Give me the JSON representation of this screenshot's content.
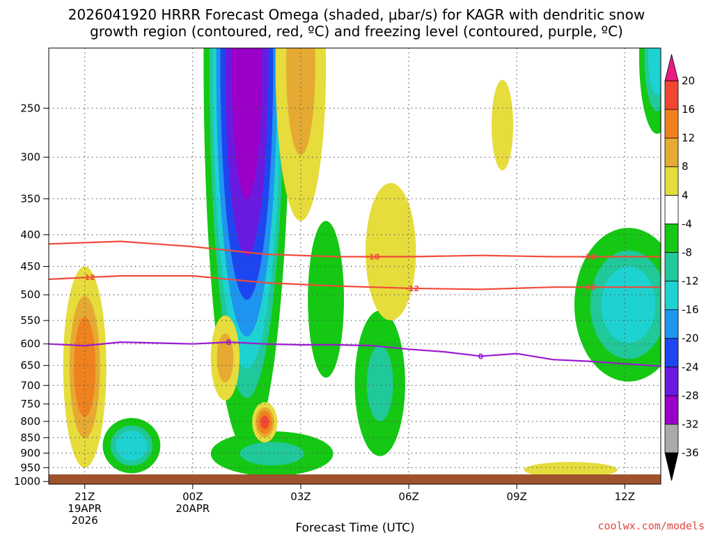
{
  "title_line1": "2026041920 HRRR Forecast Omega (shaded, μbar/s) for KAGR with dendritic snow",
  "title_line2": "growth region (contoured, red, ºC) and freezing level (contoured, purple, ºC)",
  "xlabel": "Forecast Time (UTC)",
  "credit": "coolwx.com/models",
  "colors": {
    "snow_contour": "#f04a3a",
    "freezing_contour": "#9a1ad0",
    "ground": "#a0522d",
    "grid": "#555555"
  },
  "chart_data": {
    "type": "heatmap",
    "title": "2026041920 HRRR Forecast Omega (shaded, μbar/s) for KAGR with dendritic snow growth region (contoured, red, ºC) and freezing level (contoured, purple, ºC)",
    "xlabel": "Forecast Time (UTC)",
    "ylabel": "",
    "x_ticks": [
      {
        "hour": 1,
        "lines": [
          "21Z",
          "19APR",
          "2026"
        ]
      },
      {
        "hour": 4,
        "lines": [
          "00Z",
          "20APR"
        ]
      },
      {
        "hour": 7,
        "lines": [
          "03Z"
        ]
      },
      {
        "hour": 10,
        "lines": [
          "06Z"
        ]
      },
      {
        "hour": 13,
        "lines": [
          "09Z"
        ]
      },
      {
        "hour": 16,
        "lines": [
          "12Z"
        ]
      }
    ],
    "xlim": [
      0.0,
      17.0
    ],
    "y_ticks": [
      250,
      300,
      350,
      400,
      450,
      500,
      550,
      600,
      650,
      700,
      750,
      800,
      850,
      900,
      950,
      1000
    ],
    "ylim_hpa": [
      200,
      1010
    ],
    "colorbar": {
      "levels": [
        -36,
        -32,
        -28,
        -24,
        -20,
        -16,
        -12,
        -8,
        -4,
        4,
        8,
        12,
        16,
        20
      ],
      "colors": [
        "#000000",
        "#aaaaaa",
        "#9a00c8",
        "#6a1ae0",
        "#1e46f0",
        "#1e96f0",
        "#1ed2d2",
        "#20c89a",
        "#14c814",
        "#ffffff",
        "#e6dc3c",
        "#e6aa32",
        "#f0821e",
        "#f04632",
        "#e61e82"
      ]
    },
    "omega_regions": [
      {
        "name": "main-ascent-band",
        "t": 5.5,
        "p": 470,
        "dt": 1.2,
        "dp": 420,
        "value": -30
      },
      {
        "name": "low-level-ascent",
        "t": 6.2,
        "p": 905,
        "dt": 1.7,
        "dp": 75,
        "value": -9
      },
      {
        "name": "mid-ascent-0430z",
        "t": 7.7,
        "p": 530,
        "dt": 0.5,
        "dp": 150,
        "value": -7
      },
      {
        "name": "low-ascent-0530z",
        "t": 9.2,
        "p": 720,
        "dt": 0.7,
        "dp": 190,
        "value": -9
      },
      {
        "name": "east-ascent-block",
        "t": 16.1,
        "p": 540,
        "dt": 1.5,
        "dp": 150,
        "value": -14
      },
      {
        "name": "top-right-ascent",
        "t": 16.9,
        "p": 215,
        "dt": 0.5,
        "dp": 60,
        "value": -14
      },
      {
        "name": "sw-ascent-2230z",
        "t": 2.3,
        "p": 880,
        "dt": 0.8,
        "dp": 90,
        "value": -15
      },
      {
        "name": "sinking-2100z",
        "t": 1.0,
        "p": 700,
        "dt": 0.6,
        "dp": 250,
        "value": 14
      },
      {
        "name": "sinking-0100z",
        "t": 4.9,
        "p": 640,
        "dt": 0.4,
        "dp": 100,
        "value": 10
      },
      {
        "name": "sinking-0200z",
        "t": 6.0,
        "p": 805,
        "dt": 0.35,
        "dp": 60,
        "value": 16
      },
      {
        "name": "sinking-upper-0330z",
        "t": 7.0,
        "p": 250,
        "dt": 0.7,
        "dp": 130,
        "value": 10
      },
      {
        "name": "sinking-0530z",
        "t": 9.5,
        "p": 440,
        "dt": 0.7,
        "dp": 110,
        "value": 6
      },
      {
        "name": "sinking-0730z",
        "t": 12.6,
        "p": 270,
        "dt": 0.3,
        "dp": 45,
        "value": 6
      },
      {
        "name": "sinking-1100z",
        "t": 14.5,
        "p": 958,
        "dt": 1.3,
        "dp": 28,
        "value": 6
      }
    ],
    "series": [
      {
        "name": "-18",
        "kind": "dendritic",
        "label": "-18",
        "t": [
          0.0,
          2.0,
          4.0,
          6.0,
          8.0,
          10.0,
          12.0,
          14.0,
          17.0
        ],
        "p": [
          414,
          410,
          418,
          430,
          434,
          434,
          432,
          434,
          434
        ]
      },
      {
        "name": "-12",
        "kind": "dendritic",
        "label": "-12",
        "t": [
          0.0,
          2.0,
          4.0,
          6.0,
          8.0,
          10.0,
          12.0,
          14.0,
          17.0
        ],
        "p": [
          472,
          466,
          466,
          478,
          484,
          488,
          490,
          486,
          486
        ]
      },
      {
        "name": "0",
        "kind": "freezing",
        "label": "0",
        "t": [
          0.0,
          1.0,
          2.0,
          3.0,
          4.0,
          5.0,
          6.0,
          7.0,
          8.0,
          9.0,
          10.0,
          11.0,
          12.0,
          13.0,
          14.0,
          15.0,
          16.0,
          17.0
        ],
        "p": [
          600,
          604,
          596,
          598,
          600,
          596,
          600,
          602,
          602,
          604,
          612,
          618,
          628,
          622,
          636,
          640,
          646,
          652
        ]
      }
    ],
    "contour_labels": [
      {
        "series": "-18",
        "t": 9.0
      },
      {
        "series": "-18",
        "t": 15.0
      },
      {
        "series": "-12",
        "t": 1.1
      },
      {
        "series": "-12",
        "t": 10.1
      },
      {
        "series": "-12",
        "t": 15.0
      },
      {
        "series": "0",
        "t": 5.0
      },
      {
        "series": "0",
        "t": 12.0
      }
    ],
    "ground_level_hpa": 1010
  }
}
